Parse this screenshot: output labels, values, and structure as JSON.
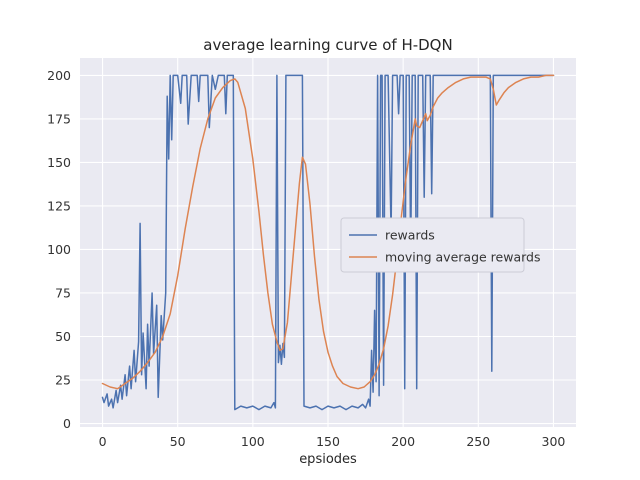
{
  "chart_data": {
    "type": "line",
    "title": "average learning curve of H-DQN",
    "xlabel": "epsiodes",
    "ylabel": "",
    "xlim": [
      -15,
      315
    ],
    "ylim": [
      -2,
      210
    ],
    "xticks": [
      0,
      50,
      100,
      150,
      200,
      250,
      300
    ],
    "yticks": [
      0,
      25,
      50,
      75,
      100,
      125,
      150,
      175,
      200
    ],
    "grid": true,
    "legend_position": "center right",
    "colors": {
      "plot_bg": "#EAEAF2",
      "grid": "#FFFFFF",
      "fig_bg": "#FFFFFF",
      "text": "#262626",
      "legend_bg": "#EAEAF2",
      "legend_border": "#CCCCD6"
    },
    "series": [
      {
        "name": "rewards",
        "color": "#4C72B0",
        "points": [
          [
            0,
            15
          ],
          [
            1,
            12
          ],
          [
            3,
            17
          ],
          [
            4,
            10
          ],
          [
            6,
            14
          ],
          [
            7,
            9
          ],
          [
            9,
            19
          ],
          [
            10,
            12
          ],
          [
            12,
            22
          ],
          [
            13,
            14
          ],
          [
            15,
            28
          ],
          [
            16,
            16
          ],
          [
            18,
            33
          ],
          [
            19,
            20
          ],
          [
            21,
            42
          ],
          [
            22,
            24
          ],
          [
            24,
            47
          ],
          [
            25,
            115
          ],
          [
            26,
            28
          ],
          [
            27,
            52
          ],
          [
            29,
            20
          ],
          [
            30,
            57
          ],
          [
            31,
            33
          ],
          [
            33,
            75
          ],
          [
            34,
            40
          ],
          [
            36,
            68
          ],
          [
            37,
            15
          ],
          [
            39,
            62
          ],
          [
            40,
            48
          ],
          [
            42,
            75
          ],
          [
            43,
            188
          ],
          [
            44,
            152
          ],
          [
            45,
            200
          ],
          [
            46,
            163
          ],
          [
            47,
            200
          ],
          [
            50,
            200
          ],
          [
            52,
            184
          ],
          [
            53,
            200
          ],
          [
            56,
            200
          ],
          [
            57,
            172
          ],
          [
            59,
            200
          ],
          [
            63,
            200
          ],
          [
            64,
            185
          ],
          [
            65,
            200
          ],
          [
            70,
            200
          ],
          [
            71,
            170
          ],
          [
            73,
            200
          ],
          [
            75,
            192
          ],
          [
            77,
            200
          ],
          [
            81,
            200
          ],
          [
            82,
            178
          ],
          [
            83,
            200
          ],
          [
            87,
            200
          ],
          [
            88,
            8
          ],
          [
            92,
            10
          ],
          [
            96,
            9
          ],
          [
            100,
            10
          ],
          [
            104,
            8
          ],
          [
            108,
            10
          ],
          [
            112,
            9
          ],
          [
            114,
            12
          ],
          [
            115,
            9
          ],
          [
            116,
            200
          ],
          [
            117,
            35
          ],
          [
            118,
            45
          ],
          [
            119,
            34
          ],
          [
            120,
            46
          ],
          [
            121,
            38
          ],
          [
            122,
            200
          ],
          [
            126,
            200
          ],
          [
            130,
            200
          ],
          [
            133,
            200
          ],
          [
            134,
            10
          ],
          [
            138,
            9
          ],
          [
            142,
            10
          ],
          [
            146,
            8
          ],
          [
            150,
            10
          ],
          [
            154,
            9
          ],
          [
            158,
            10
          ],
          [
            162,
            8
          ],
          [
            166,
            10
          ],
          [
            170,
            9
          ],
          [
            173,
            11
          ],
          [
            175,
            9
          ],
          [
            177,
            14
          ],
          [
            178,
            10
          ],
          [
            179,
            42
          ],
          [
            180,
            18
          ],
          [
            181,
            65
          ],
          [
            182,
            24
          ],
          [
            183,
            200
          ],
          [
            184,
            16
          ],
          [
            185,
            200
          ],
          [
            186,
            200
          ],
          [
            187,
            22
          ],
          [
            188,
            200
          ],
          [
            190,
            200
          ],
          [
            192,
            110
          ],
          [
            193,
            200
          ],
          [
            196,
            200
          ],
          [
            197,
            178
          ],
          [
            198,
            200
          ],
          [
            200,
            200
          ],
          [
            201,
            20
          ],
          [
            202,
            200
          ],
          [
            204,
            200
          ],
          [
            205,
            95
          ],
          [
            206,
            200
          ],
          [
            208,
            200
          ],
          [
            209,
            20
          ],
          [
            210,
            200
          ],
          [
            213,
            200
          ],
          [
            214,
            130
          ],
          [
            215,
            200
          ],
          [
            218,
            200
          ],
          [
            219,
            132
          ],
          [
            220,
            200
          ],
          [
            225,
            200
          ],
          [
            230,
            200
          ],
          [
            235,
            200
          ],
          [
            240,
            200
          ],
          [
            245,
            200
          ],
          [
            250,
            200
          ],
          [
            255,
            200
          ],
          [
            258,
            200
          ],
          [
            259,
            30
          ],
          [
            260,
            200
          ],
          [
            265,
            200
          ],
          [
            270,
            200
          ],
          [
            275,
            200
          ],
          [
            280,
            200
          ],
          [
            285,
            200
          ],
          [
            290,
            200
          ],
          [
            295,
            200
          ],
          [
            300,
            200
          ]
        ]
      },
      {
        "name": "moving average rewards",
        "color": "#DD8452",
        "points": [
          [
            0,
            23
          ],
          [
            5,
            21
          ],
          [
            10,
            20
          ],
          [
            15,
            23
          ],
          [
            20,
            26
          ],
          [
            25,
            30
          ],
          [
            30,
            35
          ],
          [
            35,
            41
          ],
          [
            40,
            50
          ],
          [
            45,
            63
          ],
          [
            50,
            85
          ],
          [
            55,
            112
          ],
          [
            60,
            136
          ],
          [
            65,
            158
          ],
          [
            70,
            175
          ],
          [
            75,
            187
          ],
          [
            80,
            193
          ],
          [
            85,
            197
          ],
          [
            88,
            198
          ],
          [
            90,
            196
          ],
          [
            95,
            181
          ],
          [
            100,
            152
          ],
          [
            104,
            122
          ],
          [
            107,
            97
          ],
          [
            110,
            75
          ],
          [
            113,
            57
          ],
          [
            116,
            47
          ],
          [
            118,
            42
          ],
          [
            120,
            43
          ],
          [
            123,
            58
          ],
          [
            126,
            88
          ],
          [
            129,
            118
          ],
          [
            131,
            138
          ],
          [
            133,
            153
          ],
          [
            135,
            149
          ],
          [
            138,
            126
          ],
          [
            141,
            96
          ],
          [
            144,
            71
          ],
          [
            147,
            53
          ],
          [
            150,
            41
          ],
          [
            153,
            33
          ],
          [
            156,
            27
          ],
          [
            160,
            23
          ],
          [
            165,
            21
          ],
          [
            170,
            20
          ],
          [
            174,
            21
          ],
          [
            178,
            24
          ],
          [
            181,
            28
          ],
          [
            184,
            34
          ],
          [
            187,
            43
          ],
          [
            190,
            56
          ],
          [
            193,
            74
          ],
          [
            196,
            96
          ],
          [
            199,
            120
          ],
          [
            202,
            142
          ],
          [
            205,
            160
          ],
          [
            207,
            170
          ],
          [
            208,
            175
          ],
          [
            209,
            171
          ],
          [
            211,
            170
          ],
          [
            213,
            174
          ],
          [
            215,
            178
          ],
          [
            216,
            174
          ],
          [
            218,
            177
          ],
          [
            220,
            182
          ],
          [
            223,
            187
          ],
          [
            226,
            190
          ],
          [
            230,
            193
          ],
          [
            235,
            196
          ],
          [
            240,
            198
          ],
          [
            245,
            199
          ],
          [
            250,
            199
          ],
          [
            255,
            199
          ],
          [
            258,
            198
          ],
          [
            260,
            192
          ],
          [
            262,
            183
          ],
          [
            264,
            186
          ],
          [
            267,
            190
          ],
          [
            270,
            193
          ],
          [
            275,
            196
          ],
          [
            280,
            198
          ],
          [
            285,
            199
          ],
          [
            290,
            199
          ],
          [
            295,
            200
          ],
          [
            300,
            200
          ]
        ]
      }
    ]
  }
}
